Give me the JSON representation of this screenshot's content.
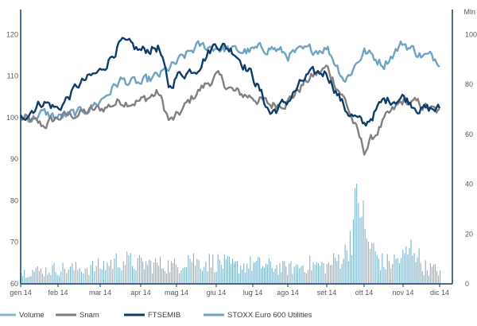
{
  "chart_data": {
    "type": "line",
    "right_axis_unit": "Mln",
    "x_tick_labels": [
      "gen 14",
      "feb 14",
      "mar 14",
      "apr 14",
      "mag 14",
      "giu 14",
      "lug 14",
      "ago 14",
      "set 14",
      "ott 14",
      "nov 14",
      "dic 14"
    ],
    "left_axis": {
      "ylim": [
        60,
        126
      ],
      "ticks": [
        60,
        70,
        80,
        90,
        100,
        110,
        120
      ]
    },
    "right_axis": {
      "ylim": [
        0,
        110
      ],
      "ticks": [
        0,
        20,
        40,
        60,
        80,
        100
      ]
    },
    "grid": false,
    "legend_position": "bottom-left",
    "colors": {
      "volume": "#82b4cc",
      "snam": "#808080",
      "ftsemib": "#0e3d6b",
      "stoxx": "#6fa3c2",
      "axis": "#0e3d6b"
    },
    "series": [
      {
        "name": "Snam",
        "axis": "left",
        "points": [
          [
            0,
            100
          ],
          [
            0.3,
            99
          ],
          [
            0.6,
            98
          ],
          [
            1,
            100
          ],
          [
            1.5,
            101
          ],
          [
            2,
            102
          ],
          [
            2.5,
            104
          ],
          [
            3,
            104
          ],
          [
            3.5,
            106
          ],
          [
            3.8,
            99
          ],
          [
            4,
            100
          ],
          [
            4.5,
            106
          ],
          [
            5,
            110
          ],
          [
            5.5,
            106
          ],
          [
            6,
            105
          ],
          [
            6.5,
            103
          ],
          [
            7,
            104
          ],
          [
            7.5,
            109
          ],
          [
            8,
            112
          ],
          [
            8.5,
            104
          ],
          [
            9,
            92
          ],
          [
            9.5,
            99
          ],
          [
            10,
            104
          ],
          [
            10.5,
            103
          ],
          [
            11,
            101
          ]
        ]
      },
      {
        "name": "FTSEMIB",
        "axis": "left",
        "points": [
          [
            0,
            100
          ],
          [
            0.3,
            102
          ],
          [
            0.6,
            104
          ],
          [
            1,
            102
          ],
          [
            1.5,
            108
          ],
          [
            2,
            111
          ],
          [
            2.5,
            118
          ],
          [
            3,
            116
          ],
          [
            3.5,
            117
          ],
          [
            3.8,
            107
          ],
          [
            4,
            110
          ],
          [
            4.5,
            112
          ],
          [
            5,
            118
          ],
          [
            5.5,
            116
          ],
          [
            6,
            110
          ],
          [
            6.5,
            101
          ],
          [
            7,
            104
          ],
          [
            7.5,
            110
          ],
          [
            8,
            111
          ],
          [
            8.5,
            102
          ],
          [
            9,
            98
          ],
          [
            9.5,
            104
          ],
          [
            10,
            105
          ],
          [
            10.5,
            102
          ],
          [
            11,
            102
          ]
        ]
      },
      {
        "name": "STOXX Euro 600 Utilities",
        "axis": "left",
        "points": [
          [
            0,
            100
          ],
          [
            0.3,
            100
          ],
          [
            0.6,
            101
          ],
          [
            1,
            100
          ],
          [
            1.5,
            101
          ],
          [
            2,
            104
          ],
          [
            2.5,
            109
          ],
          [
            3,
            108
          ],
          [
            3.5,
            110
          ],
          [
            4,
            113
          ],
          [
            4.5,
            117
          ],
          [
            5,
            117
          ],
          [
            5.5,
            116
          ],
          [
            6,
            116
          ],
          [
            6.5,
            117
          ],
          [
            7,
            115
          ],
          [
            7.5,
            116
          ],
          [
            8,
            117
          ],
          [
            8.5,
            109
          ],
          [
            9,
            116
          ],
          [
            9.5,
            113
          ],
          [
            10,
            118
          ],
          [
            10.5,
            115
          ],
          [
            11,
            114
          ]
        ]
      },
      {
        "name": "Volume",
        "axis": "right",
        "type": "bar",
        "points": [
          [
            0,
            5
          ],
          [
            0.3,
            6
          ],
          [
            0.6,
            6
          ],
          [
            1,
            7
          ],
          [
            1.5,
            7
          ],
          [
            2,
            8
          ],
          [
            2.5,
            11
          ],
          [
            3,
            9
          ],
          [
            3.5,
            9
          ],
          [
            4,
            8
          ],
          [
            4.3,
            13
          ],
          [
            4.5,
            10
          ],
          [
            5,
            10
          ],
          [
            5.5,
            8
          ],
          [
            6,
            9
          ],
          [
            6.5,
            8
          ],
          [
            7,
            7
          ],
          [
            7.5,
            9
          ],
          [
            8,
            8
          ],
          [
            8.5,
            14
          ],
          [
            8.9,
            42
          ],
          [
            9,
            22
          ],
          [
            9.3,
            13
          ],
          [
            9.5,
            9
          ],
          [
            10,
            12
          ],
          [
            10.3,
            18
          ],
          [
            10.5,
            8
          ],
          [
            11,
            6
          ]
        ]
      }
    ],
    "legend": [
      {
        "label": "Volume",
        "key": "volume"
      },
      {
        "label": "Snam",
        "key": "snam"
      },
      {
        "label": "FTSEMIB",
        "key": "ftsemib"
      },
      {
        "label": "STOXX Euro 600 Utilities",
        "key": "stoxx"
      }
    ]
  }
}
